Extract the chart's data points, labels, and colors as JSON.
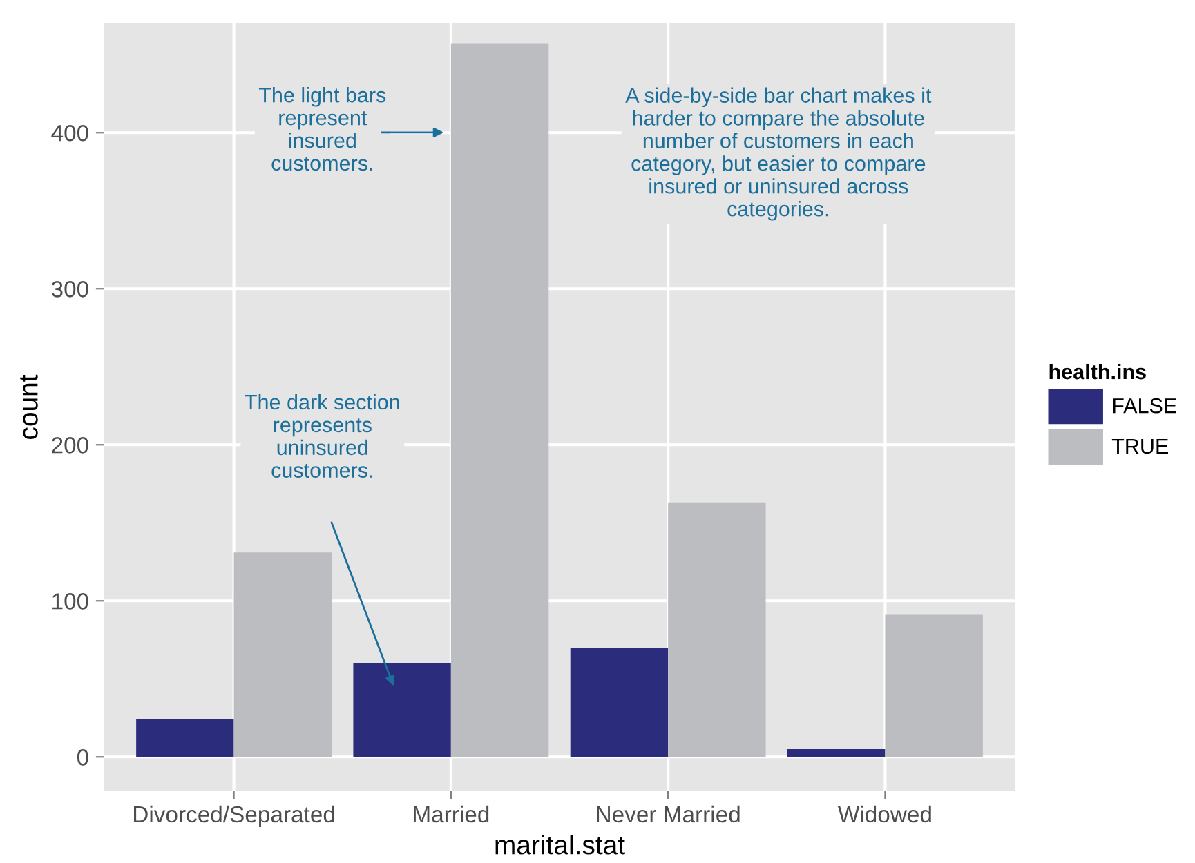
{
  "chart_data": {
    "type": "bar",
    "xlabel": "marital.stat",
    "ylabel": "count",
    "legend_title": "health.ins",
    "categories": [
      "Divorced/Separated",
      "Married",
      "Never Married",
      "Widowed"
    ],
    "series": [
      {
        "name": "FALSE",
        "color": "#2b2c7c",
        "values": [
          24,
          60,
          70,
          5
        ]
      },
      {
        "name": "TRUE",
        "color": "#bcbdc0",
        "values": [
          131,
          457,
          163,
          91
        ]
      }
    ],
    "ylim": [
      -22,
      470
    ],
    "yticks": [
      0,
      100,
      200,
      300,
      400
    ],
    "grid": true,
    "legend": "right",
    "annotations": [
      "The light bars\nrepresent\ninsured\ncustomers.",
      "The dark section\nrepresents\nuninsured\ncustomers.",
      "A side-by-side bar chart makes it\nharder to compare the absolute\nnumber of customers in each\ncategory, but easier to compare\ninsured or uninsured across\ncategories."
    ]
  }
}
